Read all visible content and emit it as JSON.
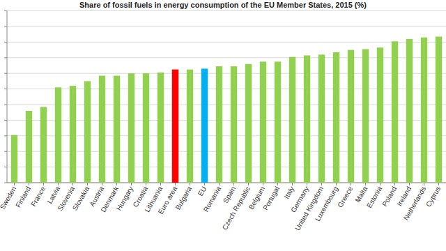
{
  "chart_data": {
    "type": "bar",
    "title": "Share of fossil fuels in energy consumption of the EU Member States, 2015 (%)",
    "categories": [
      "Sweden",
      "Finland",
      "France",
      "Latvia",
      "Slovenia",
      "Slovakia",
      "Austria",
      "Denmark",
      "Hungary",
      "Croatia",
      "Lithuania",
      "Euro area",
      "Bulgaria",
      "EU",
      "Romania",
      "Spain",
      "Czech Republic",
      "Belgium",
      "Portugal",
      "Italy",
      "Germany",
      "United Kingdom",
      "Luxembourg",
      "Greece",
      "Malta",
      "Estonia",
      "Poland",
      "Ireland",
      "Netherlands",
      "Cyprus"
    ],
    "values": [
      30.5,
      46,
      48.5,
      61,
      62,
      65,
      68.5,
      68.5,
      70,
      70,
      70.5,
      72.5,
      72.5,
      73,
      74.5,
      74.5,
      76,
      77.5,
      77.5,
      80.5,
      81.5,
      82,
      83.5,
      85,
      85.5,
      86.5,
      90.5,
      92,
      93,
      93.5
    ],
    "colors": [
      "#92d050",
      "#92d050",
      "#92d050",
      "#92d050",
      "#92d050",
      "#92d050",
      "#92d050",
      "#92d050",
      "#92d050",
      "#92d050",
      "#92d050",
      "#ff0000",
      "#92d050",
      "#00b0f0",
      "#92d050",
      "#92d050",
      "#92d050",
      "#92d050",
      "#92d050",
      "#92d050",
      "#92d050",
      "#92d050",
      "#92d050",
      "#92d050",
      "#92d050",
      "#92d050",
      "#92d050",
      "#92d050",
      "#92d050",
      "#92d050"
    ],
    "ylim": [
      0,
      110
    ],
    "yticks": [
      0,
      10,
      20,
      30,
      40,
      50,
      60,
      70,
      80,
      90,
      100,
      110
    ],
    "grid": true,
    "tick_labels": "x"
  }
}
